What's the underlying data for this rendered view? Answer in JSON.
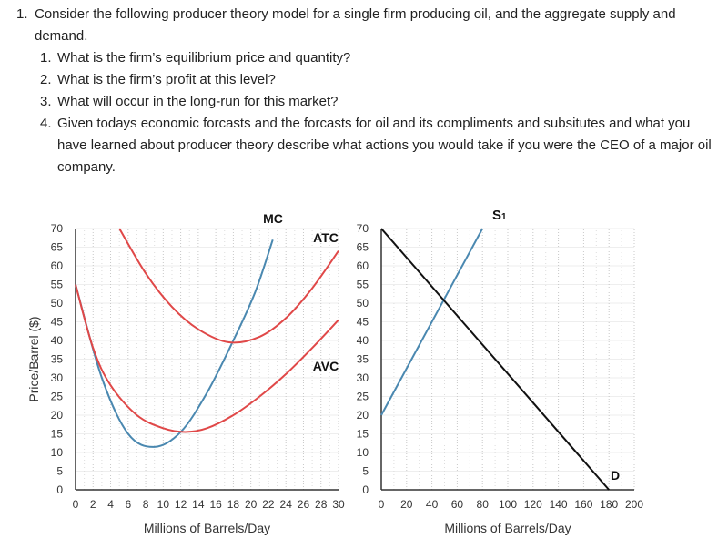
{
  "question": {
    "number": "1.",
    "text": "Consider the following producer theory model for a single firm producing oil, and the aggregate supply and demand.",
    "sub_questions": [
      {
        "number": "1.",
        "text": "What is the firm’s equilibrium price and quantity?"
      },
      {
        "number": "2.",
        "text": "What is the firm’s profit at this level?"
      },
      {
        "number": "3.",
        "text": "What will occur in the long-run for this market?"
      },
      {
        "number": "4.",
        "text": "Given todays economic forcasts and the forcasts for oil and its compliments and subsitutes and what you have learned about producer theory describe what actions you would take if you were the CEO of a major oil company."
      }
    ]
  },
  "chart_data": [
    {
      "type": "line",
      "title": "",
      "xlabel": "Millions of Barrels/Day",
      "ylabel": "Price/Barrel ($)",
      "xlim": [
        0,
        30
      ],
      "ylim": [
        0,
        70
      ],
      "xticks": [
        0,
        2,
        4,
        6,
        8,
        10,
        12,
        14,
        16,
        18,
        20,
        22,
        24,
        26,
        28,
        30
      ],
      "yticks": [
        0,
        5,
        10,
        15,
        20,
        25,
        30,
        35,
        40,
        45,
        50,
        55,
        60,
        65,
        70
      ],
      "grid": "dotted vertical",
      "series": [
        {
          "name": "MC",
          "color": "#4a88b0",
          "points": [
            [
              0,
              55
            ],
            [
              3,
              30
            ],
            [
              6,
              15
            ],
            [
              9,
              11.5
            ],
            [
              12,
              15.5
            ],
            [
              15,
              26
            ],
            [
              18,
              40
            ],
            [
              20.5,
              53
            ],
            [
              22.5,
              67
            ]
          ]
        },
        {
          "name": "ATC",
          "color": "#e04848",
          "points": [
            [
              5,
              70
            ],
            [
              8,
              58
            ],
            [
              11,
              49
            ],
            [
              14,
              43
            ],
            [
              17.5,
              39.5
            ],
            [
              21,
              41
            ],
            [
              24,
              46
            ],
            [
              27,
              54
            ],
            [
              30,
              64
            ]
          ]
        },
        {
          "name": "AVC",
          "color": "#e04848",
          "points": [
            [
              0,
              55
            ],
            [
              2,
              38
            ],
            [
              4,
              28
            ],
            [
              7,
              20
            ],
            [
              10,
              16.5
            ],
            [
              12.5,
              15.5
            ],
            [
              15,
              16.5
            ],
            [
              18,
              20
            ],
            [
              21,
              25
            ],
            [
              24,
              31
            ],
            [
              27,
              38
            ],
            [
              30,
              45.5
            ]
          ]
        }
      ]
    },
    {
      "type": "line",
      "title": "",
      "xlabel": "Millions of Barrels/Day",
      "ylabel": "",
      "xlim": [
        0,
        200
      ],
      "ylim": [
        0,
        70
      ],
      "xticks": [
        0,
        20,
        40,
        60,
        80,
        100,
        120,
        140,
        160,
        180,
        200
      ],
      "yticks": [
        0,
        5,
        10,
        15,
        20,
        25,
        30,
        35,
        40,
        45,
        50,
        55,
        60,
        65,
        70
      ],
      "grid": "dotted vertical",
      "series": [
        {
          "name": "S1",
          "color": "#4a88b0",
          "points": [
            [
              0,
              20
            ],
            [
              80,
              70
            ]
          ]
        },
        {
          "name": "D",
          "color": "#111111",
          "points": [
            [
              0,
              70
            ],
            [
              180,
              0
            ]
          ]
        }
      ]
    }
  ]
}
